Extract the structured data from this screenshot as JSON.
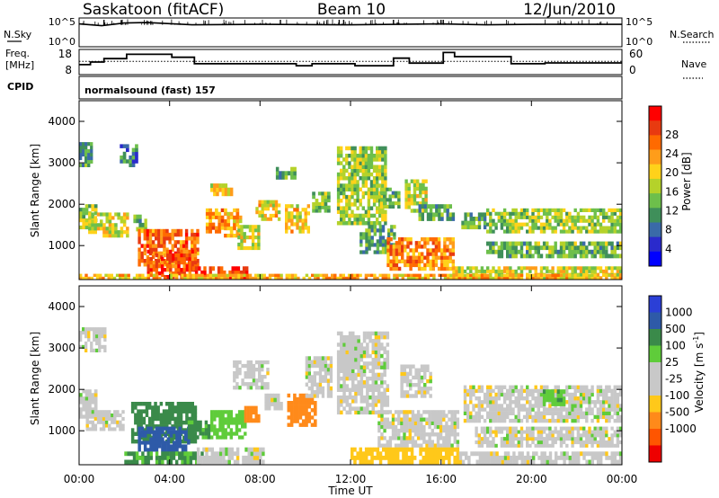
{
  "header": {
    "site": "Saskatoon (fitACF)",
    "beam": "Beam 10",
    "date": "12/Jun/2010"
  },
  "left_labels": {
    "nsky": "N.Sky",
    "freq_line1": "Freq.",
    "freq_line2": "[MHz]",
    "cpid": "CPID"
  },
  "right_labels": {
    "nsearch": "N.Search",
    "nave": "Nave"
  },
  "noise_axis": {
    "left_ticks": [
      "10^5",
      "10^0"
    ],
    "right_ticks": [
      "10^5",
      "10^0"
    ]
  },
  "freq_axis": {
    "left_ticks": [
      "18",
      "8"
    ],
    "right_ticks": [
      "60",
      "0"
    ]
  },
  "cpid_text": "normalsound (fast) 157",
  "range_axis": {
    "label": "Slant Range [km]",
    "ticks": [
      "4000",
      "3000",
      "2000",
      "1000"
    ]
  },
  "time_axis": {
    "label": "Time UT",
    "ticks": [
      "00:00",
      "04:00",
      "08:00",
      "12:00",
      "16:00",
      "20:00",
      "00:00"
    ]
  },
  "power_colorbar": {
    "label": "Power [dB]",
    "ticks": [
      "28",
      "24",
      "20",
      "16",
      "12",
      "8",
      "4"
    ],
    "colors": [
      "#ff0000",
      "#e83a10",
      "#ff6a00",
      "#ff9d1a",
      "#ffd21a",
      "#b5d22a",
      "#6dbf4b",
      "#3f8f5a",
      "#3a6aa8",
      "#2a2acc",
      "#0000ff"
    ]
  },
  "velocity_colorbar": {
    "label_main": "Velocity  [m s",
    "label_sup": "-1",
    "label_end": "]",
    "ticks": [
      "1000",
      "500",
      "100",
      "25",
      "-25",
      "-100",
      "-500",
      "-1000"
    ],
    "colors": [
      "#2b3fd6",
      "#2e5aa8",
      "#3a8a4a",
      "#5fcc3a",
      "#c8c8c8",
      "#c8c8c8",
      "#ffc81a",
      "#ff8a1a",
      "#ff5500",
      "#ee0000"
    ]
  },
  "colors": {
    "ground_scatter": "#c8c8c8",
    "axis": "#000000"
  },
  "chart_data": [
    {
      "type": "line",
      "name": "noise",
      "x_unit": "hours UT",
      "xlim": [
        0,
        24
      ],
      "series": [
        {
          "values_hours": [
            0,
            1,
            2,
            3,
            5,
            8,
            12,
            14,
            16,
            18,
            20,
            24
          ],
          "log10_counts": [
            4.6,
            4.2,
            4.8,
            4.9,
            4.4,
            4.5,
            4.4,
            4.5,
            4.6,
            4.4,
            4.5,
            4.5
          ]
        }
      ]
    },
    {
      "type": "line",
      "name": "frequency",
      "x_unit": "hours UT",
      "ylim_left": [
        8,
        18
      ],
      "ylim_right": [
        0,
        60
      ],
      "series": [
        {
          "name": "frequency_MHz",
          "x": [
            0,
            0.5,
            0.5,
            1.1,
            1.1,
            2.1,
            2.1,
            4.1,
            4.1,
            5.1,
            5.1,
            9.6,
            9.6,
            10.3,
            10.3,
            12.2,
            12.2,
            13.9,
            13.9,
            14.6,
            14.6,
            16.1,
            16.1,
            16.6,
            16.6,
            19.1,
            19.1,
            20.6,
            20.6,
            24
          ],
          "y": [
            11.8,
            11.8,
            13,
            13,
            14.6,
            14.6,
            16.6,
            16.6,
            15.2,
            15.2,
            12.2,
            12.2,
            11.3,
            11.3,
            12.2,
            12.2,
            11.3,
            11.3,
            14.8,
            14.8,
            12.5,
            12.5,
            17.4,
            17.4,
            15.5,
            15.5,
            12.2,
            12.2,
            12.6,
            12.6
          ]
        }
      ]
    },
    {
      "type": "heatmap",
      "name": "power",
      "x_unit": "hours UT",
      "y_unit": "km",
      "xlim": [
        0,
        24
      ],
      "ylim": [
        180,
        4500
      ],
      "zlim": [
        0,
        30
      ],
      "regions": [
        {
          "t": [
            0.0,
            0.8
          ],
          "r": [
            1400,
            2000
          ],
          "v": 14
        },
        {
          "t": [
            0.0,
            0.6
          ],
          "r": [
            2900,
            3500
          ],
          "v": 10
        },
        {
          "t": [
            0.4,
            2.2
          ],
          "r": [
            1200,
            1800
          ],
          "v": 16
        },
        {
          "t": [
            1.8,
            2.6
          ],
          "r": [
            2900,
            3450
          ],
          "v": 8
        },
        {
          "t": [
            2.4,
            3.0
          ],
          "r": [
            1350,
            1750
          ],
          "v": 12
        },
        {
          "t": [
            2.6,
            5.3
          ],
          "r": [
            500,
            1400
          ],
          "v": 24
        },
        {
          "t": [
            3.0,
            5.2
          ],
          "r": [
            200,
            900
          ],
          "v": 26
        },
        {
          "t": [
            5.0,
            7.6
          ],
          "r": [
            200,
            500
          ],
          "v": 28
        },
        {
          "t": [
            5.6,
            6.4
          ],
          "r": [
            1300,
            1900
          ],
          "v": 22
        },
        {
          "t": [
            5.8,
            6.8
          ],
          "r": [
            2200,
            2500
          ],
          "v": 18
        },
        {
          "t": [
            6.4,
            7.2
          ],
          "r": [
            1200,
            1900
          ],
          "v": 20
        },
        {
          "t": [
            7.0,
            8.0
          ],
          "r": [
            900,
            1500
          ],
          "v": 16
        },
        {
          "t": [
            7.8,
            8.9
          ],
          "r": [
            1600,
            2100
          ],
          "v": 18
        },
        {
          "t": [
            8.7,
            9.6
          ],
          "r": [
            2600,
            2900
          ],
          "v": 10
        },
        {
          "t": [
            9.1,
            10.2
          ],
          "r": [
            1300,
            2000
          ],
          "v": 18
        },
        {
          "t": [
            10.3,
            11.1
          ],
          "r": [
            1800,
            2300
          ],
          "v": 12
        },
        {
          "t": [
            11.4,
            13.6
          ],
          "r": [
            1500,
            3400
          ],
          "v": 14
        },
        {
          "t": [
            12.4,
            14.0
          ],
          "r": [
            800,
            1500
          ],
          "v": 10
        },
        {
          "t": [
            13.3,
            14.2
          ],
          "r": [
            1900,
            2400
          ],
          "v": 12
        },
        {
          "t": [
            14.4,
            15.4
          ],
          "r": [
            1800,
            2600
          ],
          "v": 16
        },
        {
          "t": [
            13.6,
            16.6
          ],
          "r": [
            400,
            1200
          ],
          "v": 22
        },
        {
          "t": [
            15.0,
            16.6
          ],
          "r": [
            1600,
            2000
          ],
          "v": 10
        },
        {
          "t": [
            16.9,
            18.0
          ],
          "r": [
            1400,
            1800
          ],
          "v": 10
        },
        {
          "t": [
            18.0,
            24.0
          ],
          "r": [
            1300,
            1900
          ],
          "v": 14
        },
        {
          "t": [
            18.0,
            24.0
          ],
          "r": [
            700,
            1100
          ],
          "v": 12
        },
        {
          "t": [
            16.5,
            24.0
          ],
          "r": [
            180,
            500
          ],
          "v": 16
        },
        {
          "t": [
            0.0,
            24.0
          ],
          "r": [
            180,
            320
          ],
          "v": 20
        }
      ]
    },
    {
      "type": "heatmap",
      "name": "velocity",
      "x_unit": "hours UT",
      "y_unit": "km",
      "xlim": [
        0,
        24
      ],
      "ylim": [
        180,
        4500
      ],
      "zlim": [
        -1000,
        1000
      ],
      "regions": [
        {
          "t": [
            0.0,
            0.8
          ],
          "r": [
            1300,
            2000
          ],
          "v": 0
        },
        {
          "t": [
            0.0,
            1.2
          ],
          "r": [
            2900,
            3500
          ],
          "v": 0
        },
        {
          "t": [
            0.3,
            2.0
          ],
          "r": [
            1000,
            1500
          ],
          "v": 0
        },
        {
          "t": [
            2.3,
            5.2
          ],
          "r": [
            700,
            1700
          ],
          "v": 150
        },
        {
          "t": [
            2.6,
            4.9
          ],
          "r": [
            500,
            1100
          ],
          "v": 400
        },
        {
          "t": [
            4.8,
            5.8
          ],
          "r": [
            800,
            1250
          ],
          "v": 120
        },
        {
          "t": [
            2.0,
            5.5
          ],
          "r": [
            200,
            500
          ],
          "v": 110
        },
        {
          "t": [
            5.2,
            8.2
          ],
          "r": [
            200,
            600
          ],
          "v": 0
        },
        {
          "t": [
            5.8,
            7.4
          ],
          "r": [
            800,
            1500
          ],
          "v": 60
        },
        {
          "t": [
            6.8,
            8.4
          ],
          "r": [
            2000,
            2700
          ],
          "v": 0
        },
        {
          "t": [
            7.3,
            8.0
          ],
          "r": [
            1200,
            1600
          ],
          "v": -300
        },
        {
          "t": [
            8.2,
            9.0
          ],
          "r": [
            1500,
            1900
          ],
          "v": 0
        },
        {
          "t": [
            9.2,
            10.5
          ],
          "r": [
            1100,
            1900
          ],
          "v": -400
        },
        {
          "t": [
            10.0,
            11.2
          ],
          "r": [
            1800,
            2800
          ],
          "v": 0
        },
        {
          "t": [
            11.4,
            13.7
          ],
          "r": [
            1400,
            3400
          ],
          "v": 0
        },
        {
          "t": [
            13.2,
            16.8
          ],
          "r": [
            600,
            1500
          ],
          "v": 0
        },
        {
          "t": [
            14.2,
            15.6
          ],
          "r": [
            1800,
            2600
          ],
          "v": 0
        },
        {
          "t": [
            12.0,
            16.8
          ],
          "r": [
            200,
            600
          ],
          "v": -60
        },
        {
          "t": [
            17.0,
            24.0
          ],
          "r": [
            1200,
            2100
          ],
          "v": 0
        },
        {
          "t": [
            17.5,
            24.0
          ],
          "r": [
            600,
            1100
          ],
          "v": 0
        },
        {
          "t": [
            16.8,
            24.0
          ],
          "r": [
            200,
            500
          ],
          "v": 0
        },
        {
          "t": [
            20.5,
            21.5
          ],
          "r": [
            1600,
            2000
          ],
          "v": 80
        }
      ]
    }
  ]
}
